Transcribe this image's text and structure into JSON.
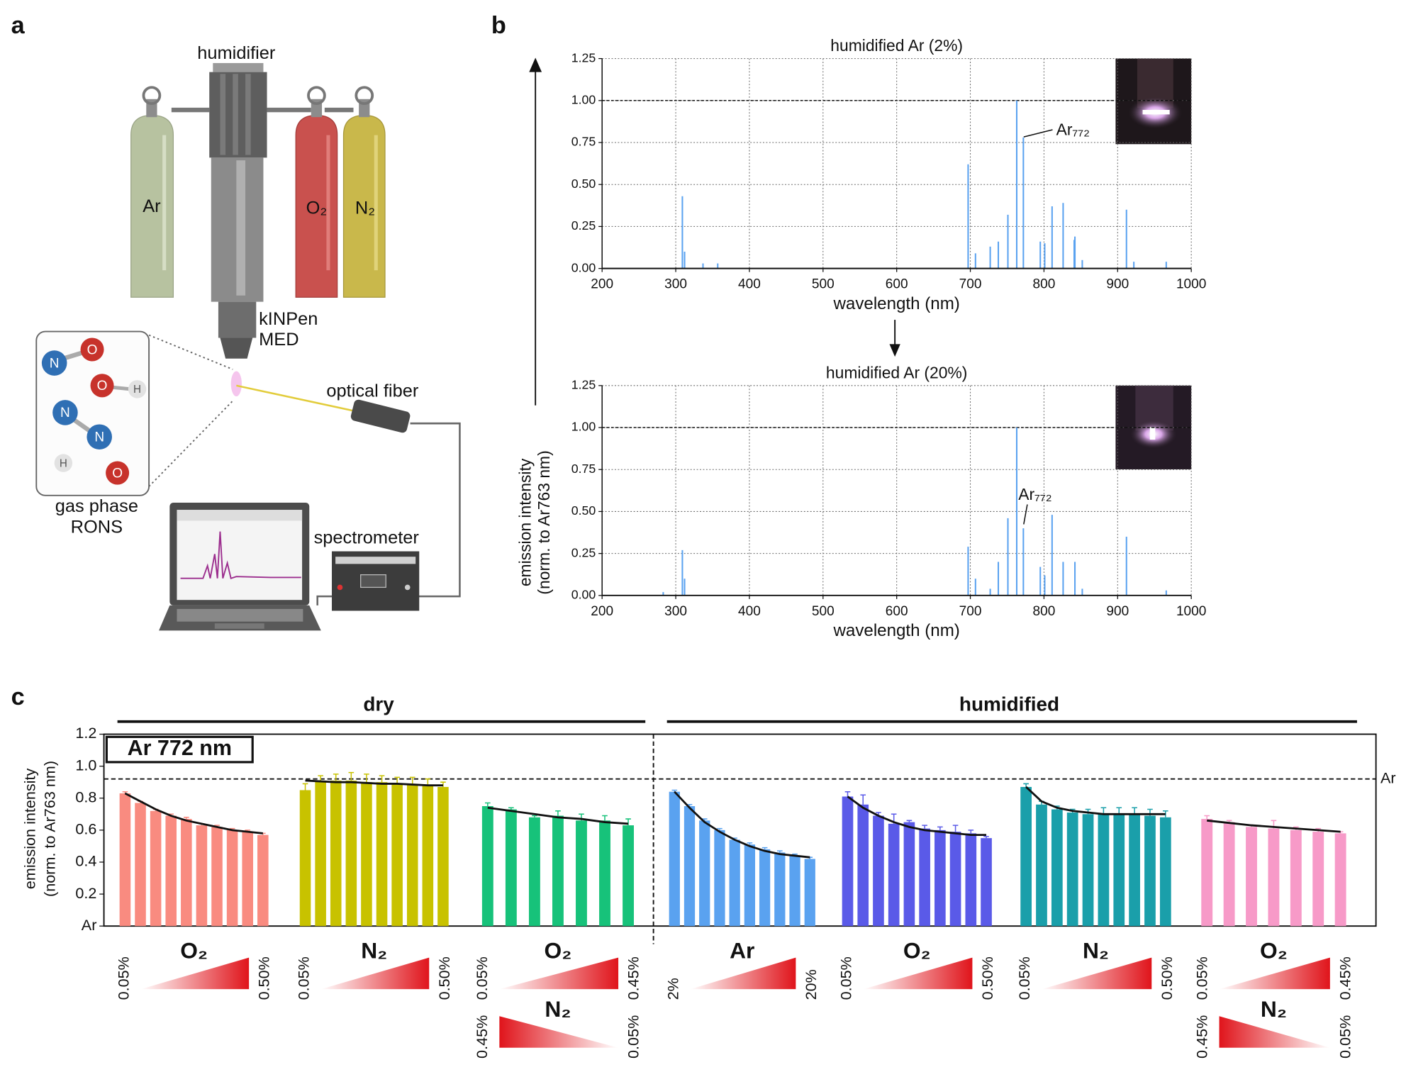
{
  "panel_labels": [
    "a",
    "b",
    "c"
  ],
  "panel_a": {
    "humidifier": "humidifier",
    "cylinders": [
      "Ar",
      "O₂",
      "N₂"
    ],
    "device": [
      "kINPen",
      "MED"
    ],
    "fiber": "optical fiber",
    "spectrometer": "spectrometer",
    "species": [
      "gas phase",
      "RONS"
    ],
    "atoms": [
      "N",
      "O",
      "O",
      "H",
      "N",
      "N",
      "H",
      "O"
    ]
  },
  "chart_data": [
    {
      "type": "stem",
      "title": "humidified Ar (2%)",
      "xlabel": "wavelength (nm)",
      "color": "#5aa2f0",
      "grid": true,
      "hline": 1,
      "annotation": "Ar₇₇₂",
      "xlim": [
        200,
        1000
      ],
      "xticks": [
        200,
        300,
        400,
        500,
        600,
        700,
        800,
        900,
        1000
      ],
      "ylim": [
        0,
        1.25
      ],
      "yticks": [
        {
          "value": 0,
          "label": "0.00"
        },
        {
          "value": 0.25,
          "label": "0.25"
        },
        {
          "value": 0.5,
          "label": "0.50"
        },
        {
          "value": 0.75,
          "label": "0.75"
        },
        {
          "value": 1,
          "label": "1.00"
        },
        {
          "value": 1.25,
          "label": "1.25"
        }
      ],
      "x": [
        309,
        312,
        337,
        357,
        697,
        707,
        727,
        738,
        751,
        763,
        772,
        795,
        801,
        811,
        826,
        841,
        842,
        852,
        912,
        922,
        966
      ],
      "values": [
        0.43,
        0.1,
        0.03,
        0.03,
        0.62,
        0.09,
        0.13,
        0.16,
        0.32,
        1,
        0.78,
        0.16,
        0.15,
        0.37,
        0.39,
        0.17,
        0.19,
        0.05,
        0.35,
        0.04,
        0.04
      ]
    },
    {
      "type": "stem",
      "title": "humidified Ar (20%)",
      "xlabel": "wavelength (nm)",
      "ylabel": [
        "emission intensity",
        "(norm. to Ar763 nm)"
      ],
      "color": "#5aa2f0",
      "grid": true,
      "hline": 1,
      "annotation": "Ar₇₇₂",
      "xlim": [
        200,
        1000
      ],
      "xticks": [
        200,
        300,
        400,
        500,
        600,
        700,
        800,
        900,
        1000
      ],
      "ylim": [
        0,
        1.25
      ],
      "yticks": [
        {
          "value": 0,
          "label": "0.00"
        },
        {
          "value": 0.25,
          "label": "0.25"
        },
        {
          "value": 0.5,
          "label": "0.50"
        },
        {
          "value": 0.75,
          "label": "0.75"
        },
        {
          "value": 1,
          "label": "1.00"
        },
        {
          "value": 1.25,
          "label": "1.25"
        }
      ],
      "x": [
        283,
        309,
        312,
        697,
        707,
        727,
        738,
        751,
        763,
        772,
        795,
        801,
        811,
        826,
        842,
        852,
        912,
        966
      ],
      "values": [
        0.02,
        0.27,
        0.1,
        0.29,
        0.1,
        0.04,
        0.2,
        0.46,
        1,
        0.4,
        0.17,
        0.12,
        0.48,
        0.2,
        0.2,
        0.04,
        0.35,
        0.03
      ]
    },
    {
      "type": "grouped_bar",
      "label_box": "Ar 772 nm",
      "ylabel": [
        "emission intensity",
        "(norm. to Ar763 nm)"
      ],
      "ylim": [
        0,
        1.2
      ],
      "yticks": [
        {
          "value": 0,
          "label": "Ar"
        },
        0.2,
        0.4,
        0.6,
        0.8,
        {
          "value": 1,
          "label": "1.0"
        },
        1.2
      ],
      "reference_line": {
        "value": 0.92,
        "label": "Ar"
      },
      "sections": [
        {
          "name": "dry",
          "series": [
            {
              "color": "#f98b80",
              "values": [
                0.83,
                0.77,
                0.72,
                0.69,
                0.67,
                0.63,
                0.62,
                0.6,
                0.59,
                0.57
              ],
              "errors": [
                0.01,
                0.01,
                0.01,
                0.01,
                0.01,
                0.01,
                0.01,
                0.01,
                0.01,
                0.01
              ],
              "fit": [
                0.83,
                0.78,
                0.73,
                0.69,
                0.66,
                0.64,
                0.62,
                0.6,
                0.59,
                0.58
              ],
              "ramps": [
                {
                  "name": "O₂",
                  "from": "0.05%",
                  "to": "0.50%",
                  "shape": "rising"
                }
              ]
            },
            {
              "color": "#c8c200",
              "values": [
                0.85,
                0.91,
                0.91,
                0.91,
                0.9,
                0.9,
                0.89,
                0.89,
                0.88,
                0.87
              ],
              "errors": [
                0.04,
                0.03,
                0.04,
                0.05,
                0.05,
                0.04,
                0.04,
                0.04,
                0.04,
                0.03
              ],
              "fit": [
                0.91,
                0.905,
                0.9,
                0.9,
                0.895,
                0.89,
                0.89,
                0.885,
                0.88,
                0.88
              ],
              "ramps": [
                {
                  "name": "N₂",
                  "from": "0.05%",
                  "to": "0.50%",
                  "shape": "rising"
                }
              ]
            },
            {
              "color": "#17c27a",
              "values": [
                0.75,
                0.73,
                0.68,
                0.69,
                0.66,
                0.66,
                0.63
              ],
              "errors": [
                0.02,
                0.01,
                0.01,
                0.03,
                0.04,
                0.03,
                0.04
              ],
              "fit": [
                0.74,
                0.72,
                0.7,
                0.68,
                0.67,
                0.65,
                0.64
              ],
              "ramps": [
                {
                  "name": "O₂",
                  "from": "0.05%",
                  "to": "0.45%",
                  "shape": "rising"
                },
                {
                  "name": "N₂",
                  "from": "0.45%",
                  "to": "0.05%",
                  "shape": "falling"
                }
              ]
            }
          ]
        },
        {
          "name": "humidified",
          "series": [
            {
              "color": "#5aa2f0",
              "values": [
                0.84,
                0.75,
                0.66,
                0.6,
                0.54,
                0.51,
                0.48,
                0.46,
                0.44,
                0.42
              ],
              "errors": [
                0.01,
                0.01,
                0.01,
                0.01,
                0.01,
                0.01,
                0.01,
                0.01,
                0.01,
                0.01
              ],
              "fit": [
                0.84,
                0.74,
                0.65,
                0.59,
                0.54,
                0.5,
                0.47,
                0.45,
                0.44,
                0.43
              ],
              "ramps": [
                {
                  "name": "Ar",
                  "from": "2%",
                  "to": "20%",
                  "shape": "rising"
                }
              ]
            },
            {
              "color": "#5a5ae8",
              "values": [
                0.81,
                0.76,
                0.69,
                0.64,
                0.65,
                0.61,
                0.6,
                0.59,
                0.58,
                0.55
              ],
              "errors": [
                0.03,
                0.06,
                0.02,
                0.06,
                0.01,
                0.02,
                0.02,
                0.04,
                0.02,
                0.01
              ],
              "fit": [
                0.81,
                0.74,
                0.69,
                0.65,
                0.62,
                0.6,
                0.59,
                0.58,
                0.57,
                0.57
              ],
              "ramps": [
                {
                  "name": "O₂",
                  "from": "0.05%",
                  "to": "0.50%",
                  "shape": "rising"
                }
              ]
            },
            {
              "color": "#1a9faa",
              "values": [
                0.87,
                0.76,
                0.73,
                0.71,
                0.7,
                0.7,
                0.7,
                0.7,
                0.69,
                0.68
              ],
              "errors": [
                0.02,
                0.02,
                0.02,
                0.02,
                0.03,
                0.04,
                0.04,
                0.04,
                0.04,
                0.04
              ],
              "fit": [
                0.87,
                0.78,
                0.74,
                0.72,
                0.71,
                0.7,
                0.7,
                0.7,
                0.7,
                0.7
              ],
              "ramps": [
                {
                  "name": "N₂",
                  "from": "0.05%",
                  "to": "0.50%",
                  "shape": "rising"
                }
              ]
            },
            {
              "color": "#f79ac8",
              "values": [
                0.67,
                0.65,
                0.62,
                0.61,
                0.6,
                0.59,
                0.58
              ],
              "errors": [
                0.02,
                0.01,
                0.01,
                0.05,
                0.02,
                0.02,
                0.01
              ],
              "fit": [
                0.66,
                0.645,
                0.63,
                0.62,
                0.61,
                0.6,
                0.59
              ],
              "ramps": [
                {
                  "name": "O₂",
                  "from": "0.05%",
                  "to": "0.45%",
                  "shape": "rising"
                },
                {
                  "name": "N₂",
                  "from": "0.45%",
                  "to": "0.05%",
                  "shape": "falling"
                }
              ]
            }
          ]
        }
      ]
    }
  ]
}
